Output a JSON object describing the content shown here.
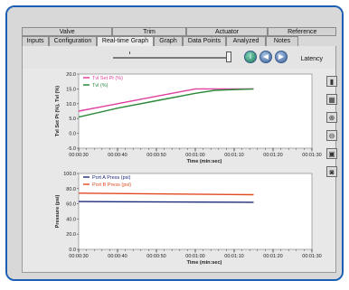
{
  "tabs_top": [
    "Valve",
    "Trim",
    "Actuator",
    "Reference"
  ],
  "tabs_bottom": [
    "Inputs",
    "Configuration",
    "Real-time Graph",
    "Graph",
    "Data Points",
    "Analyzed",
    "Notes"
  ],
  "active_tab": "Real-time Graph",
  "toolbar": {
    "latency_label": "Latency"
  },
  "icons": {
    "info": "info-icon",
    "back": "back-arrow-icon",
    "forward": "forward-arrow-icon",
    "side_tools": [
      "bar-chart-icon",
      "grid-icon",
      "zoom-in-icon",
      "zoom-out-icon",
      "print-icon",
      "save-icon"
    ]
  },
  "colors": {
    "frame": "#1a5fb4",
    "series_setpt": "#e040a0",
    "series_travel": "#2a8a3a",
    "series_port_a": "#1c2a7a",
    "series_port_b": "#e04a20"
  },
  "chart_data": [
    {
      "type": "line",
      "ylabel": "Tvl Set Pt (%), Tvl (%)",
      "xlabel": "Time (min:sec)",
      "ylim": [
        -5,
        20
      ],
      "yticks": [
        "20.0",
        "15.0",
        "10.0",
        "5.0",
        "0.0",
        "-5.0"
      ],
      "xticks": [
        "00:00:30",
        "00:00:40",
        "00:00:50",
        "00:01:00",
        "00:01:10",
        "00:01:20",
        "00:01:30"
      ],
      "legend_placement": "top-left",
      "series": [
        {
          "name": "Tvl Set Pt (%)",
          "x": [
            "00:00:30",
            "00:00:40",
            "00:00:50",
            "00:01:00",
            "00:01:05",
            "00:01:15"
          ],
          "values": [
            7.5,
            10.0,
            12.5,
            15.0,
            15.0,
            15.0
          ]
        },
        {
          "name": "Tvl (%)",
          "x": [
            "00:00:30",
            "00:00:40",
            "00:00:50",
            "00:01:00",
            "00:01:05",
            "00:01:15"
          ],
          "values": [
            5.5,
            8.5,
            11.0,
            13.5,
            14.5,
            15.0
          ]
        }
      ]
    },
    {
      "type": "line",
      "ylabel": "Pressure (psi)",
      "xlabel": "Time (min:sec)",
      "ylim": [
        0,
        100
      ],
      "yticks": [
        "100.0",
        "80.0",
        "60.0",
        "40.0",
        "20.0",
        "0.0"
      ],
      "xticks": [
        "00:00:30",
        "00:00:40",
        "00:00:50",
        "00:01:00",
        "00:01:10",
        "00:01:20",
        "00:01:30"
      ],
      "legend_placement": "top-left",
      "series": [
        {
          "name": "Port A Press (psi)",
          "x": [
            "00:00:30",
            "00:01:15"
          ],
          "values": [
            63,
            62
          ]
        },
        {
          "name": "Port B Press (psi)",
          "x": [
            "00:00:30",
            "00:01:15"
          ],
          "values": [
            74,
            72
          ]
        }
      ]
    }
  ]
}
